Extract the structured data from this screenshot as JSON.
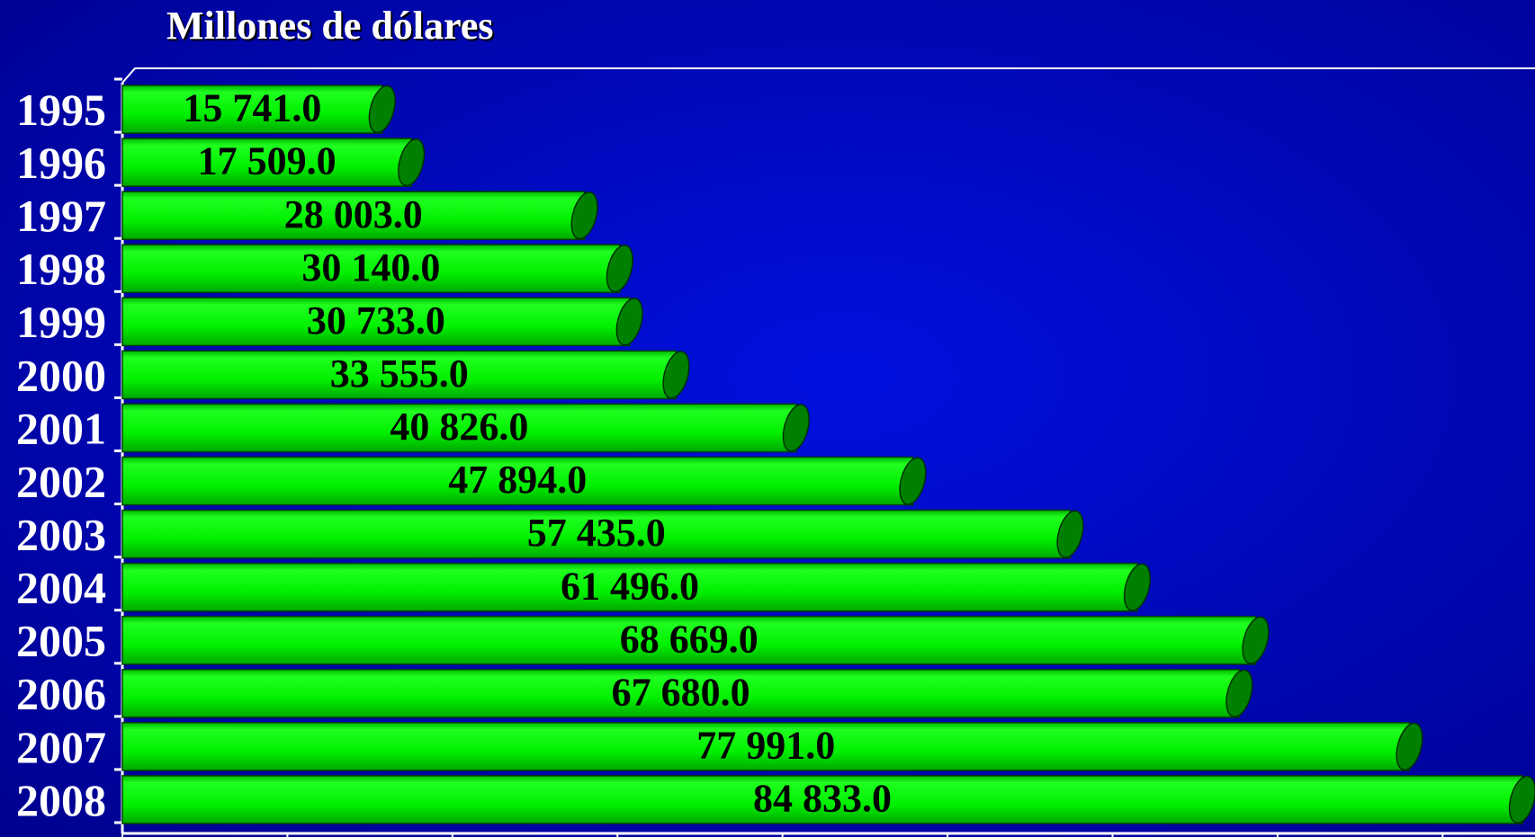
{
  "chart_data": {
    "type": "bar",
    "orientation": "horizontal",
    "title": "Millones de dólares",
    "categories": [
      "1995",
      "1996",
      "1997",
      "1998",
      "1999",
      "2000",
      "2001",
      "2002",
      "2003",
      "2004",
      "2005",
      "2006",
      "2007",
      "2008"
    ],
    "values": [
      15741,
      17509,
      28003,
      30140,
      30733,
      33555,
      40826,
      47894,
      57435,
      61496,
      68669,
      67680,
      77991,
      84833
    ],
    "value_labels": [
      "15 741.0",
      "17 509.0",
      "28 003.0",
      "30 140.0",
      "30 733.0",
      "33 555.0",
      "40 826.0",
      "47 894.0",
      "57 435.0",
      "61 496.0",
      "68 669.0",
      "67 680.0",
      "77 991.0",
      "84 833.0"
    ],
    "color": "#00f000",
    "xlim": [
      0,
      85000
    ],
    "xticks": [
      0,
      10000,
      20000,
      30000,
      40000,
      50000,
      60000,
      70000,
      80000
    ]
  }
}
